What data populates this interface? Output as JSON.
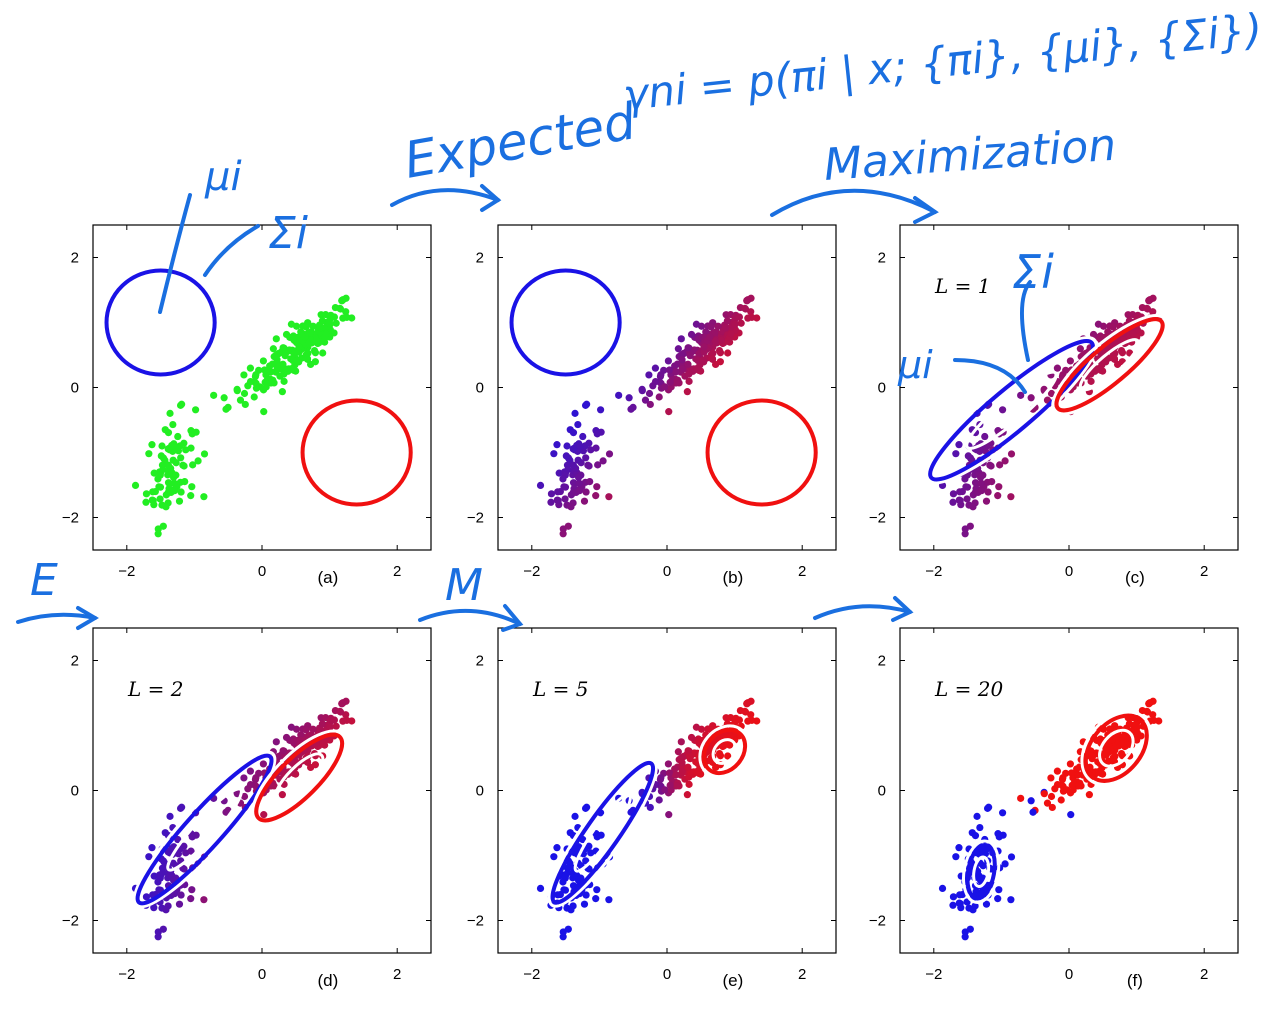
{
  "annotations": {
    "expected": "Expected",
    "gamma_eq": "γni = p(πi | x; {πi}, {μi}, {Σi})",
    "maximization": "Maximization",
    "mu_a": "μi",
    "sigma_a": "Σi",
    "sigma_c": "Σi",
    "mu_c": "μi",
    "e_mark": "E",
    "m_mark": "M"
  },
  "colors": {
    "blue": "#1a12e6",
    "red": "#f01010",
    "green": "#22ee22",
    "hand": "#1a6fe0"
  },
  "chart_data": [
    {
      "panel": "a",
      "type": "scatter",
      "tag": "(a)",
      "iteration_label": "",
      "xlim": [
        -2.5,
        2.5
      ],
      "ylim": [
        -2.5,
        2.5
      ],
      "xticks": [
        "−2",
        "0",
        "2"
      ],
      "yticks": [
        "2",
        "0",
        "−2"
      ],
      "coloring": "green",
      "components": [
        {
          "color": "blue",
          "mean": [
            -1.5,
            1.0
          ],
          "rx": 0.8,
          "ry": 0.8,
          "angle": 0
        },
        {
          "color": "red",
          "mean": [
            1.4,
            -1.0
          ],
          "rx": 0.8,
          "ry": 0.8,
          "angle": 0
        }
      ]
    },
    {
      "panel": "b",
      "type": "scatter",
      "tag": "(b)",
      "iteration_label": "",
      "xlim": [
        -2.5,
        2.5
      ],
      "ylim": [
        -2.5,
        2.5
      ],
      "xticks": [
        "−2",
        "0",
        "2"
      ],
      "yticks": [
        "2",
        "0",
        "−2"
      ],
      "coloring": "responsibility",
      "components": [
        {
          "color": "blue",
          "mean": [
            -1.5,
            1.0
          ],
          "rx": 0.8,
          "ry": 0.8,
          "angle": 0
        },
        {
          "color": "red",
          "mean": [
            1.4,
            -1.0
          ],
          "rx": 0.8,
          "ry": 0.8,
          "angle": 0
        }
      ]
    },
    {
      "panel": "c",
      "type": "scatter",
      "tag": "(c)",
      "iteration_label": "L = 1",
      "xlim": [
        -2.5,
        2.5
      ],
      "ylim": [
        -2.5,
        2.5
      ],
      "xticks": [
        "−2",
        "0",
        "2"
      ],
      "yticks": [
        "2",
        "0",
        "−2"
      ],
      "coloring": "responsibility",
      "components": [
        {
          "color": "blue",
          "mean": [
            -0.85,
            -0.35
          ],
          "rx": 1.55,
          "ry": 0.32,
          "angle": 40
        },
        {
          "color": "red",
          "mean": [
            0.6,
            0.35
          ],
          "rx": 1.0,
          "ry": 0.28,
          "angle": 40
        }
      ]
    },
    {
      "panel": "d",
      "type": "scatter",
      "tag": "(d)",
      "iteration_label": "L = 2",
      "xlim": [
        -2.5,
        2.5
      ],
      "ylim": [
        -2.5,
        2.5
      ],
      "xticks": [
        "−2",
        "0",
        "2"
      ],
      "yticks": [
        "2",
        "0",
        "−2"
      ],
      "coloring": "responsibility",
      "components": [
        {
          "color": "blue",
          "mean": [
            -0.85,
            -0.6
          ],
          "rx": 1.45,
          "ry": 0.28,
          "angle": 48
        },
        {
          "color": "red",
          "mean": [
            0.55,
            0.2
          ],
          "rx": 0.85,
          "ry": 0.3,
          "angle": 45
        }
      ]
    },
    {
      "panel": "e",
      "type": "scatter",
      "tag": "(e)",
      "iteration_label": "L = 5",
      "xlim": [
        -2.5,
        2.5
      ],
      "ylim": [
        -2.5,
        2.5
      ],
      "xticks": [
        "−2",
        "0",
        "2"
      ],
      "yticks": [
        "2",
        "0",
        "−2"
      ],
      "coloring": "responsibility",
      "components": [
        {
          "color": "blue",
          "mean": [
            -0.95,
            -0.65
          ],
          "rx": 1.25,
          "ry": 0.25,
          "angle": 55
        },
        {
          "color": "red",
          "mean": [
            0.85,
            0.6
          ],
          "rx": 0.35,
          "ry": 0.28,
          "angle": 50
        }
      ]
    },
    {
      "panel": "f",
      "type": "scatter",
      "tag": "(f)",
      "iteration_label": "L = 20",
      "xlim": [
        -2.5,
        2.5
      ],
      "ylim": [
        -2.5,
        2.5
      ],
      "xticks": [
        "−2",
        "0",
        "2"
      ],
      "yticks": [
        "2",
        "0",
        "−2"
      ],
      "coloring": "hard",
      "components": [
        {
          "color": "blue",
          "mean": [
            -1.3,
            -1.25
          ],
          "rx": 0.4,
          "ry": 0.2,
          "angle": 80
        },
        {
          "color": "red",
          "mean": [
            0.7,
            0.65
          ],
          "rx": 0.55,
          "ry": 0.38,
          "angle": 50
        }
      ]
    }
  ]
}
